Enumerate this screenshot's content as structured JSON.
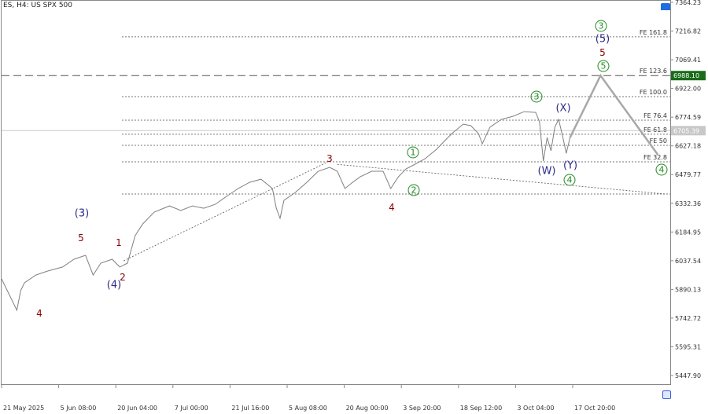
{
  "header": {
    "title": "ES, H4:  US SPX 500",
    "toolbar_t": "t"
  },
  "chart_data": {
    "type": "line",
    "title": "ES, H4:  US SPX 500",
    "ylim": [
      5447.9,
      7364.23
    ],
    "y_ticks": [
      "7364.23",
      "7216.82",
      "7069.41",
      "6922.00",
      "6774.59",
      "6627.18",
      "6479.77",
      "6332.36",
      "6184.95",
      "6037.54",
      "5890.13",
      "5742.72",
      "5595.31",
      "5447.90"
    ],
    "x_ticks": [
      "21 May 2025",
      "5 Jun 08:00",
      "20 Jun 04:00",
      "7 Jul 00:00",
      "21 Jul 16:00",
      "5 Aug 08:00",
      "20 Aug 00:00",
      "3 Sep 20:00",
      "18 Sep 12:00",
      "3 Oct 04:00",
      "17 Oct 20:00"
    ],
    "grid": false,
    "series": [
      {
        "color": "#808080",
        "points": [
          [
            "2025-05-21",
            5944
          ],
          [
            "2025-05-23",
            5864
          ],
          [
            "2025-05-25",
            5783
          ],
          [
            "2025-05-26",
            5884
          ],
          [
            "2025-05-27",
            5924
          ],
          [
            "2025-05-30",
            5964
          ],
          [
            "2025-06-02",
            5984
          ],
          [
            "2025-06-06",
            6005
          ],
          [
            "2025-06-09",
            6045
          ],
          [
            "2025-06-12",
            6065
          ],
          [
            "2025-06-14",
            5964
          ],
          [
            "2025-06-16",
            6025
          ],
          [
            "2025-06-19",
            6045
          ],
          [
            "2025-06-21",
            6005
          ],
          [
            "2025-06-23",
            6025
          ],
          [
            "2025-06-25",
            6166
          ],
          [
            "2025-06-27",
            6226
          ],
          [
            "2025-06-30",
            6287
          ],
          [
            "2025-07-04",
            6319
          ],
          [
            "2025-07-07",
            6295
          ],
          [
            "2025-07-10",
            6319
          ],
          [
            "2025-07-13",
            6307
          ],
          [
            "2025-07-16",
            6327
          ],
          [
            "2025-07-19",
            6368
          ],
          [
            "2025-07-22",
            6408
          ],
          [
            "2025-07-25",
            6440
          ],
          [
            "2025-07-28",
            6456
          ],
          [
            "2025-07-31",
            6408
          ],
          [
            "2025-08-01",
            6307
          ],
          [
            "2025-08-02",
            6255
          ],
          [
            "2025-08-03",
            6347
          ],
          [
            "2025-08-06",
            6388
          ],
          [
            "2025-08-09",
            6440
          ],
          [
            "2025-08-12",
            6497
          ],
          [
            "2025-08-15",
            6517
          ],
          [
            "2025-08-17",
            6497
          ],
          [
            "2025-08-19",
            6408
          ],
          [
            "2025-08-21",
            6440
          ],
          [
            "2025-08-23",
            6468
          ],
          [
            "2025-08-26",
            6497
          ],
          [
            "2025-08-29",
            6497
          ],
          [
            "2025-08-31",
            6408
          ],
          [
            "2025-09-02",
            6468
          ],
          [
            "2025-09-04",
            6509
          ],
          [
            "2025-09-06",
            6529
          ],
          [
            "2025-09-09",
            6561
          ],
          [
            "2025-09-12",
            6610
          ],
          [
            "2025-09-14",
            6650
          ],
          [
            "2025-09-16",
            6690
          ],
          [
            "2025-09-19",
            6739
          ],
          [
            "2025-09-21",
            6731
          ],
          [
            "2025-09-23",
            6690
          ],
          [
            "2025-09-24",
            6638
          ],
          [
            "2025-09-26",
            6723
          ],
          [
            "2025-09-29",
            6763
          ],
          [
            "2025-10-02",
            6779
          ],
          [
            "2025-10-05",
            6803
          ],
          [
            "2025-10-08",
            6799
          ],
          [
            "2025-10-09",
            6751
          ],
          [
            "2025-10-10",
            6549
          ],
          [
            "2025-10-11",
            6670
          ],
          [
            "2025-10-12",
            6602
          ],
          [
            "2025-10-13",
            6723
          ],
          [
            "2025-10-14",
            6763
          ],
          [
            "2025-10-15",
            6682
          ],
          [
            "2025-10-16",
            6589
          ],
          [
            "2025-10-17",
            6670
          ]
        ]
      }
    ],
    "projection": {
      "color": "#a0a0a0",
      "points": [
        [
          "2025-10-17",
          6670
        ],
        [
          "2025-10-25",
          6988.1
        ],
        [
          "2025-11-09",
          6582
        ]
      ]
    },
    "current_price": {
      "value": "6705.39",
      "color": "#c8c8c8"
    },
    "target_price": {
      "value": "6988.10",
      "color": "#1a6b1a"
    },
    "fib_levels": [
      {
        "label": "FE 161.8",
        "price": 7187
      },
      {
        "label": "FE 123.6",
        "price": 6988.1
      },
      {
        "label": "FE 100.0",
        "price": 6880
      },
      {
        "label": "FE 76.4",
        "price": 6759
      },
      {
        "label": "FE 61.8",
        "price": 6687
      },
      {
        "label": "FE 50",
        "price": 6630
      },
      {
        "label": "FE 32.8",
        "price": 6545
      }
    ],
    "support_line": {
      "price": 6380
    },
    "trendlines": [
      {
        "points": [
          [
            "2025-06-22",
            6037
          ],
          [
            "2025-08-14",
            6540
          ]
        ]
      },
      {
        "points": [
          [
            "2025-08-17",
            6532
          ],
          [
            "2025-11-11",
            6380
          ]
        ]
      }
    ],
    "wave_labels": {
      "green": [
        "1",
        "2",
        "3",
        "4",
        "3",
        "5",
        "4"
      ],
      "navy": [
        "(3)",
        "(4)",
        "(W)",
        "(X)",
        "(Y)",
        "(5)"
      ],
      "red": [
        "4",
        "5",
        "1",
        "2",
        "3",
        "4",
        "5"
      ]
    }
  }
}
